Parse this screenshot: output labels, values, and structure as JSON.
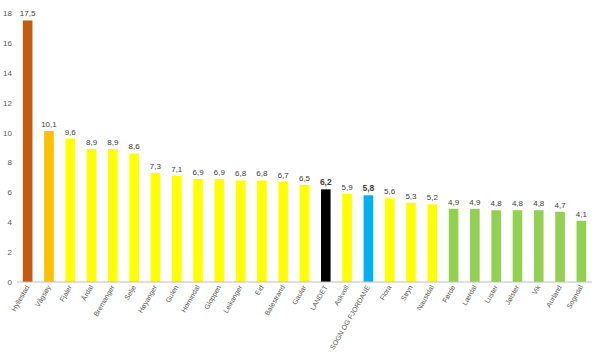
{
  "chart_data": {
    "type": "bar",
    "categories": [
      "Hyllestad",
      "Vågsøy",
      "Fjaler",
      "Årdal",
      "Bremanger",
      "Selje",
      "Høyanger",
      "Gulen",
      "Hornindal",
      "Gloppen",
      "Leikanger",
      "Eid",
      "Balestrand",
      "Gaular",
      "LANDET",
      "Askvoll",
      "SOGN OG FJORDANE",
      "Flora",
      "Stryn",
      "Naustdal",
      "Førde",
      "Lærdal",
      "Luster",
      "Jølster",
      "Vik",
      "Aurland",
      "Sogndal"
    ],
    "values": [
      17.5,
      10.1,
      9.6,
      8.9,
      8.9,
      8.6,
      7.3,
      7.1,
      6.9,
      6.9,
      6.8,
      6.8,
      6.7,
      6.5,
      6.2,
      5.9,
      5.8,
      5.6,
      5.3,
      5.2,
      4.9,
      4.9,
      4.8,
      4.8,
      4.8,
      4.7,
      4.1
    ],
    "value_labels": [
      "17,5",
      "10,1",
      "9,6",
      "8,9",
      "8,9",
      "8,6",
      "7,3",
      "7,1",
      "6,9",
      "6,9",
      "6,8",
      "6,8",
      "6,7",
      "6,5",
      "6,2",
      "5,9",
      "5,8",
      "5,6",
      "5,3",
      "5,2",
      "4,9",
      "4,9",
      "4,8",
      "4,8",
      "4,8",
      "4,7",
      "4,1"
    ],
    "colors": [
      "#c55a11",
      "#ffc000",
      "#ffff00",
      "#ffff00",
      "#ffff00",
      "#ffff00",
      "#ffff00",
      "#ffff00",
      "#ffff00",
      "#ffff00",
      "#ffff00",
      "#ffff00",
      "#ffff00",
      "#ffff00",
      "#000000",
      "#ffff00",
      "#00b0f0",
      "#ffff00",
      "#ffff00",
      "#ffff00",
      "#92d050",
      "#92d050",
      "#92d050",
      "#92d050",
      "#92d050",
      "#92d050",
      "#92d050"
    ],
    "ylim": [
      0,
      18
    ],
    "yticks": [
      0,
      2,
      4,
      6,
      8,
      10,
      12,
      14,
      16,
      18
    ],
    "grid": false,
    "data_labels": true
  }
}
